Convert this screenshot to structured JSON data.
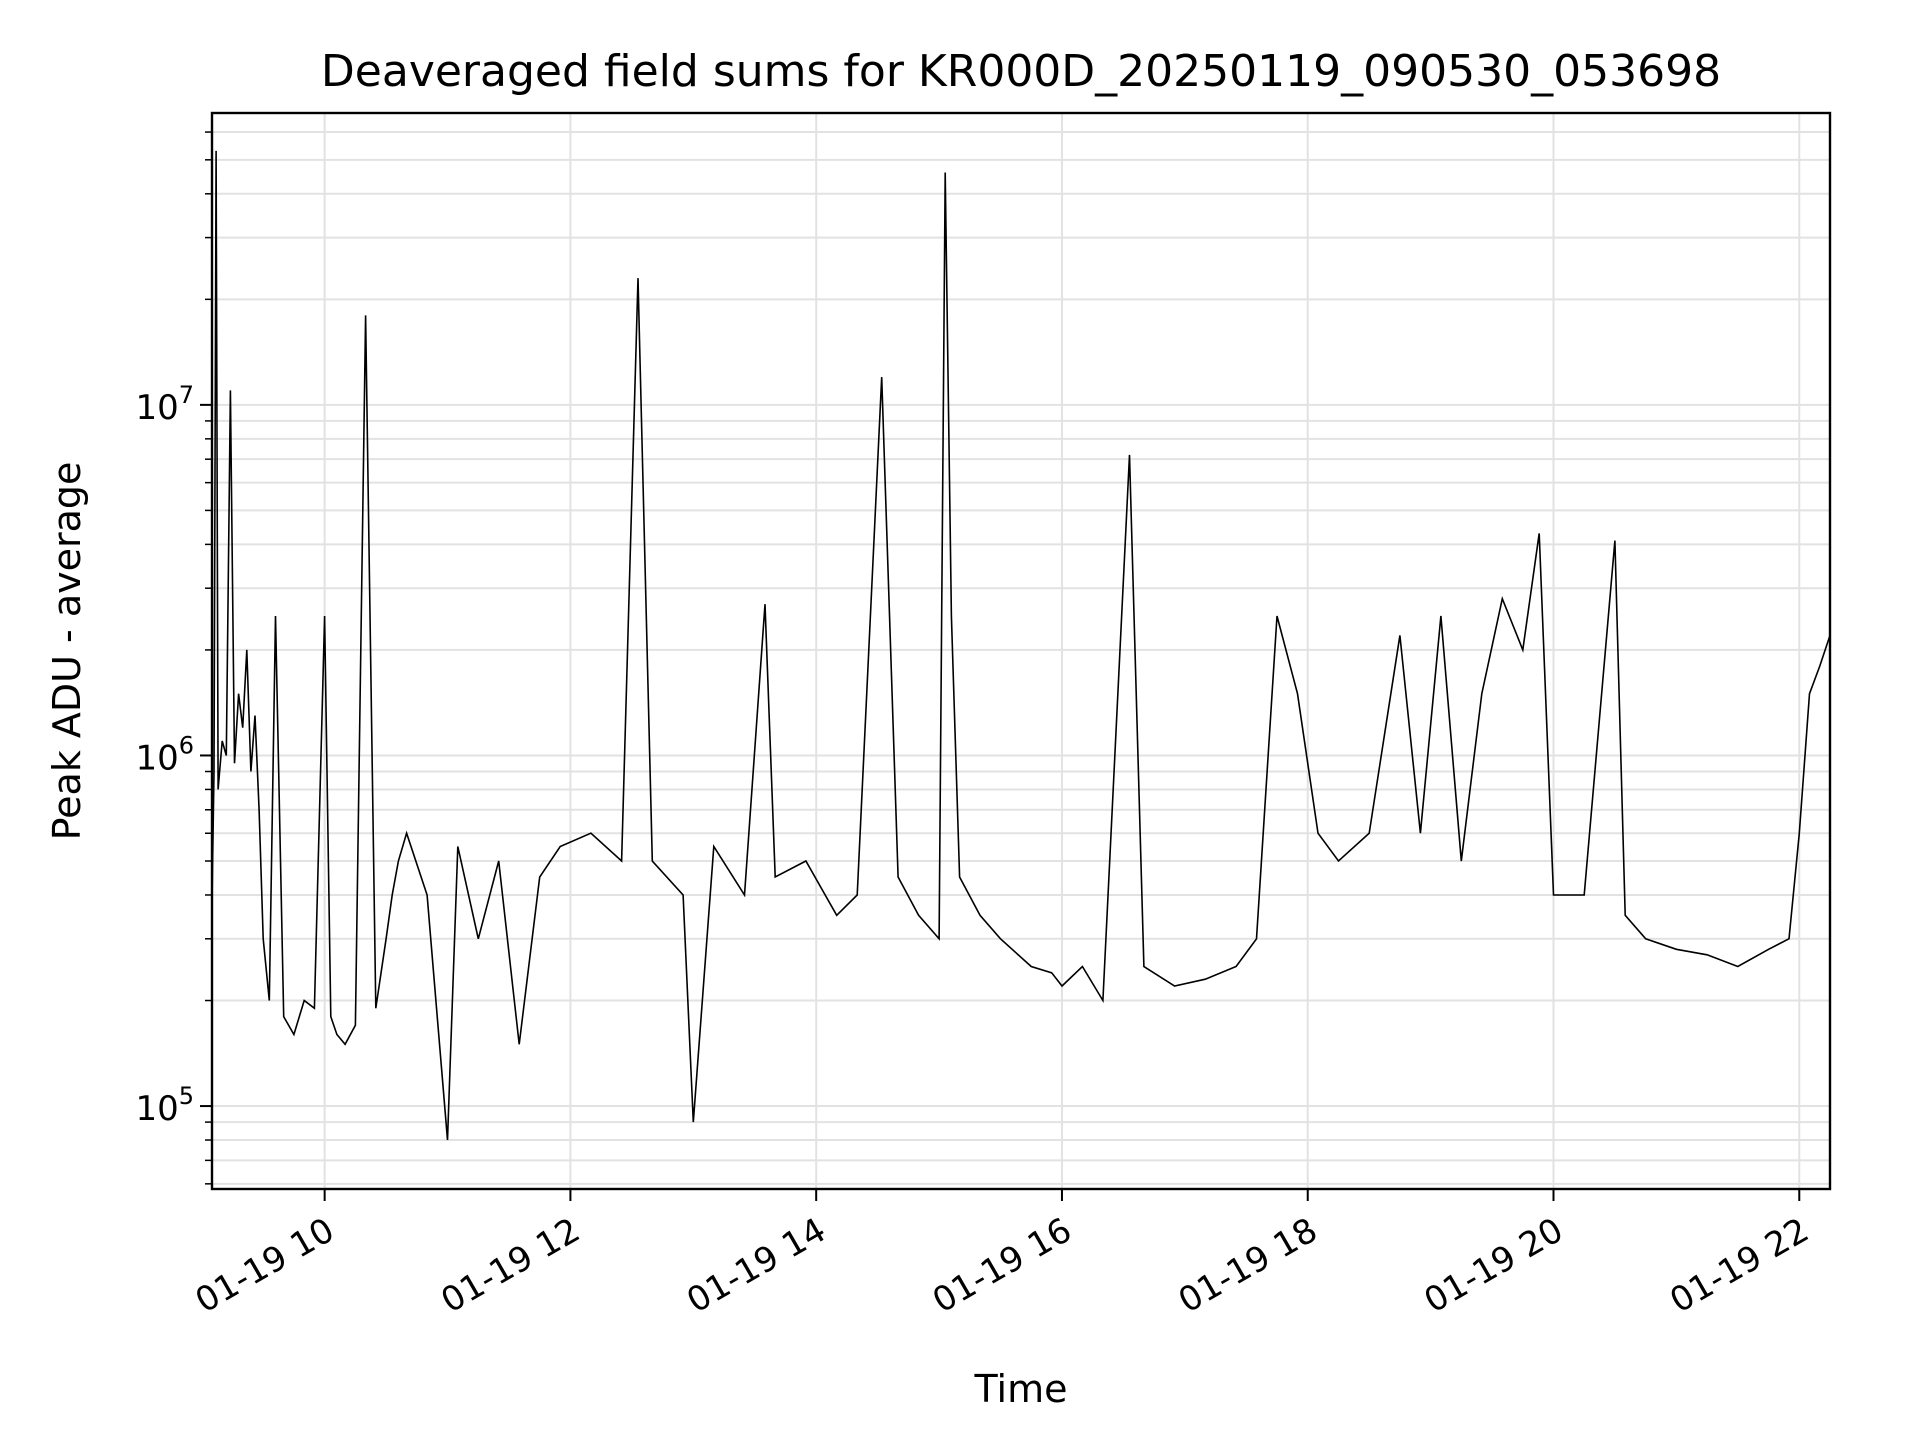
{
  "chart_data": {
    "type": "line",
    "title": "Deaveraged field sums for KR000D_20250119_090530_053698",
    "xlabel": "Time",
    "ylabel": "Peak ADU - average",
    "y_scale": "log",
    "ylim": [
      58000,
      68000000
    ],
    "xlim": [
      "2025-01-19 09:05",
      "2025-01-19 22:15"
    ],
    "x_ticks": [
      "2025-01-19 10:00",
      "2025-01-19 12:00",
      "2025-01-19 14:00",
      "2025-01-19 16:00",
      "2025-01-19 18:00",
      "2025-01-19 20:00",
      "2025-01-19 22:00"
    ],
    "x_tick_labels": [
      "01-19 10",
      "01-19 12",
      "01-19 14",
      "01-19 16",
      "01-19 18",
      "01-19 20",
      "01-19 22"
    ],
    "y_tick_labels": [
      {
        "value": 100000,
        "base": "10",
        "exp": "5"
      },
      {
        "value": 1000000,
        "base": "10",
        "exp": "6"
      },
      {
        "value": 10000000,
        "base": "10",
        "exp": "7"
      }
    ],
    "grid": true,
    "line_color": "#000000",
    "series": [
      {
        "x": [
          "2025-01-19 09:05",
          "2025-01-19 09:06",
          "2025-01-19 09:07",
          "2025-01-19 09:08",
          "2025-01-19 09:10",
          "2025-01-19 09:12",
          "2025-01-19 09:14",
          "2025-01-19 09:16",
          "2025-01-19 09:18",
          "2025-01-19 09:20",
          "2025-01-19 09:22",
          "2025-01-19 09:24",
          "2025-01-19 09:26",
          "2025-01-19 09:28",
          "2025-01-19 09:30",
          "2025-01-19 09:33",
          "2025-01-19 09:36",
          "2025-01-19 09:40",
          "2025-01-19 09:45",
          "2025-01-19 09:50",
          "2025-01-19 09:55",
          "2025-01-19 10:00",
          "2025-01-19 10:03",
          "2025-01-19 10:06",
          "2025-01-19 10:10",
          "2025-01-19 10:15",
          "2025-01-19 10:20",
          "2025-01-19 10:25",
          "2025-01-19 10:30",
          "2025-01-19 10:33",
          "2025-01-19 10:36",
          "2025-01-19 10:40",
          "2025-01-19 10:50",
          "2025-01-19 11:00",
          "2025-01-19 11:05",
          "2025-01-19 11:15",
          "2025-01-19 11:25",
          "2025-01-19 11:35",
          "2025-01-19 11:45",
          "2025-01-19 11:55",
          "2025-01-19 12:10",
          "2025-01-19 12:25",
          "2025-01-19 12:33",
          "2025-01-19 12:40",
          "2025-01-19 12:55",
          "2025-01-19 13:00",
          "2025-01-19 13:10",
          "2025-01-19 13:25",
          "2025-01-19 13:35",
          "2025-01-19 13:40",
          "2025-01-19 13:55",
          "2025-01-19 14:10",
          "2025-01-19 14:20",
          "2025-01-19 14:32",
          "2025-01-19 14:40",
          "2025-01-19 14:50",
          "2025-01-19 15:00",
          "2025-01-19 15:03",
          "2025-01-19 15:06",
          "2025-01-19 15:10",
          "2025-01-19 15:20",
          "2025-01-19 15:30",
          "2025-01-19 15:45",
          "2025-01-19 15:55",
          "2025-01-19 16:00",
          "2025-01-19 16:10",
          "2025-01-19 16:20",
          "2025-01-19 16:33",
          "2025-01-19 16:40",
          "2025-01-19 16:55",
          "2025-01-19 17:10",
          "2025-01-19 17:25",
          "2025-01-19 17:35",
          "2025-01-19 17:45",
          "2025-01-19 17:55",
          "2025-01-19 18:05",
          "2025-01-19 18:15",
          "2025-01-19 18:30",
          "2025-01-19 18:45",
          "2025-01-19 18:55",
          "2025-01-19 19:05",
          "2025-01-19 19:15",
          "2025-01-19 19:25",
          "2025-01-19 19:35",
          "2025-01-19 19:45",
          "2025-01-19 19:53",
          "2025-01-19 20:00",
          "2025-01-19 20:15",
          "2025-01-19 20:30",
          "2025-01-19 20:35",
          "2025-01-19 20:45",
          "2025-01-19 21:00",
          "2025-01-19 21:15",
          "2025-01-19 21:30",
          "2025-01-19 21:45",
          "2025-01-19 21:55",
          "2025-01-19 22:00",
          "2025-01-19 22:05",
          "2025-01-19 22:10",
          "2025-01-19 22:15"
        ],
        "y": [
          380000,
          900000,
          53000000,
          800000,
          1100000,
          1000000,
          11000000,
          950000,
          1500000,
          1200000,
          2000000,
          900000,
          1300000,
          700000,
          300000,
          200000,
          2500000,
          180000,
          160000,
          200000,
          190000,
          2500000,
          180000,
          160000,
          150000,
          170000,
          18000000,
          190000,
          300000,
          400000,
          500000,
          600000,
          400000,
          80000,
          550000,
          300000,
          500000,
          150000,
          450000,
          550000,
          600000,
          500000,
          23000000,
          500000,
          400000,
          90000,
          550000,
          400000,
          2700000,
          450000,
          500000,
          350000,
          400000,
          12000000,
          450000,
          350000,
          300000,
          46000000,
          2500000,
          450000,
          350000,
          300000,
          250000,
          240000,
          220000,
          250000,
          200000,
          7200000,
          250000,
          220000,
          230000,
          250000,
          300000,
          2500000,
          1500000,
          600000,
          500000,
          600000,
          2200000,
          600000,
          2500000,
          500000,
          1500000,
          2800000,
          2000000,
          4300000,
          400000,
          400000,
          4100000,
          350000,
          300000,
          280000,
          270000,
          250000,
          280000,
          300000,
          600000,
          1500000,
          1800000,
          2200000
        ]
      }
    ]
  }
}
